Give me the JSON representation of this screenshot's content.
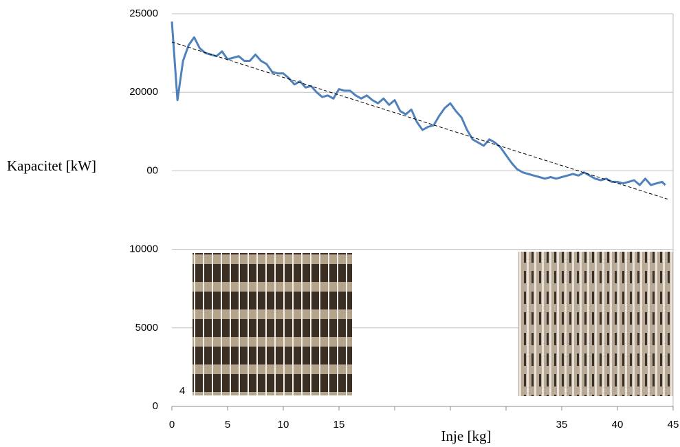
{
  "chart_data": {
    "type": "line",
    "ylabel": "Kapacitet [kW]",
    "xlabel": "Inje [kg]",
    "xlim": [
      0,
      45
    ],
    "ylim": [
      0,
      25000
    ],
    "xticks": [
      0,
      5,
      10,
      15,
      {
        "value": 20,
        "label": null
      },
      {
        "value": 25,
        "label": null
      },
      {
        "value": 30,
        "label": null
      },
      35,
      40,
      45
    ],
    "yticks": [
      0,
      5000,
      10000,
      {
        "value": 15000,
        "label": "00"
      },
      20000,
      25000
    ],
    "grid": true,
    "annotations": [
      "4"
    ],
    "series": [
      {
        "color": "#4f81bd",
        "x": [
          0,
          0.5,
          1,
          1.5,
          2,
          2.5,
          3,
          3.5,
          4,
          4.5,
          5,
          5.5,
          6,
          6.5,
          7,
          7.5,
          8,
          8.5,
          9,
          9.5,
          10,
          10.5,
          11,
          11.5,
          12,
          12.5,
          13,
          13.5,
          14,
          14.5,
          15,
          15.5,
          16,
          16.5,
          17,
          17.5,
          18,
          18.5,
          19,
          19.5,
          20,
          20.5,
          21,
          21.5,
          22,
          22.5,
          23,
          23.5,
          24,
          24.5,
          25,
          25.5,
          26,
          26.5,
          27,
          27.5,
          28,
          28.5,
          29,
          29.5,
          30,
          30.5,
          31,
          31.5,
          32,
          32.5,
          33,
          33.5,
          34,
          34.5,
          35,
          35.5,
          36,
          36.5,
          37,
          37.5,
          38,
          38.5,
          39,
          39.5,
          40,
          40.5,
          41,
          41.5,
          42,
          42.5,
          43,
          43.5,
          44,
          44.3
        ],
        "values": [
          24500,
          19500,
          22000,
          23000,
          23500,
          22800,
          22500,
          22400,
          22300,
          22600,
          22100,
          22200,
          22300,
          22000,
          22000,
          22400,
          22000,
          21800,
          21300,
          21200,
          21200,
          20900,
          20500,
          20700,
          20300,
          20400,
          20000,
          19700,
          19800,
          19600,
          20200,
          20100,
          20100,
          19800,
          19600,
          19800,
          19500,
          19300,
          19600,
          19200,
          19500,
          18800,
          18600,
          18900,
          18100,
          17600,
          17800,
          17900,
          18500,
          19000,
          19300,
          18800,
          18400,
          17600,
          17000,
          16800,
          16600,
          17000,
          16800,
          16500,
          16000,
          15500,
          15100,
          14900,
          14800,
          14700,
          14600,
          14500,
          14600,
          14500,
          14600,
          14700,
          14800,
          14700,
          14900,
          14700,
          14500,
          14400,
          14500,
          14300,
          14300,
          14200,
          14300,
          14400,
          14100,
          14500,
          14100,
          14200,
          14300,
          14100
        ]
      }
    ],
    "trendline": {
      "color": "#000000",
      "x": [
        0,
        44.5
      ],
      "values": [
        23200,
        13200
      ]
    }
  }
}
